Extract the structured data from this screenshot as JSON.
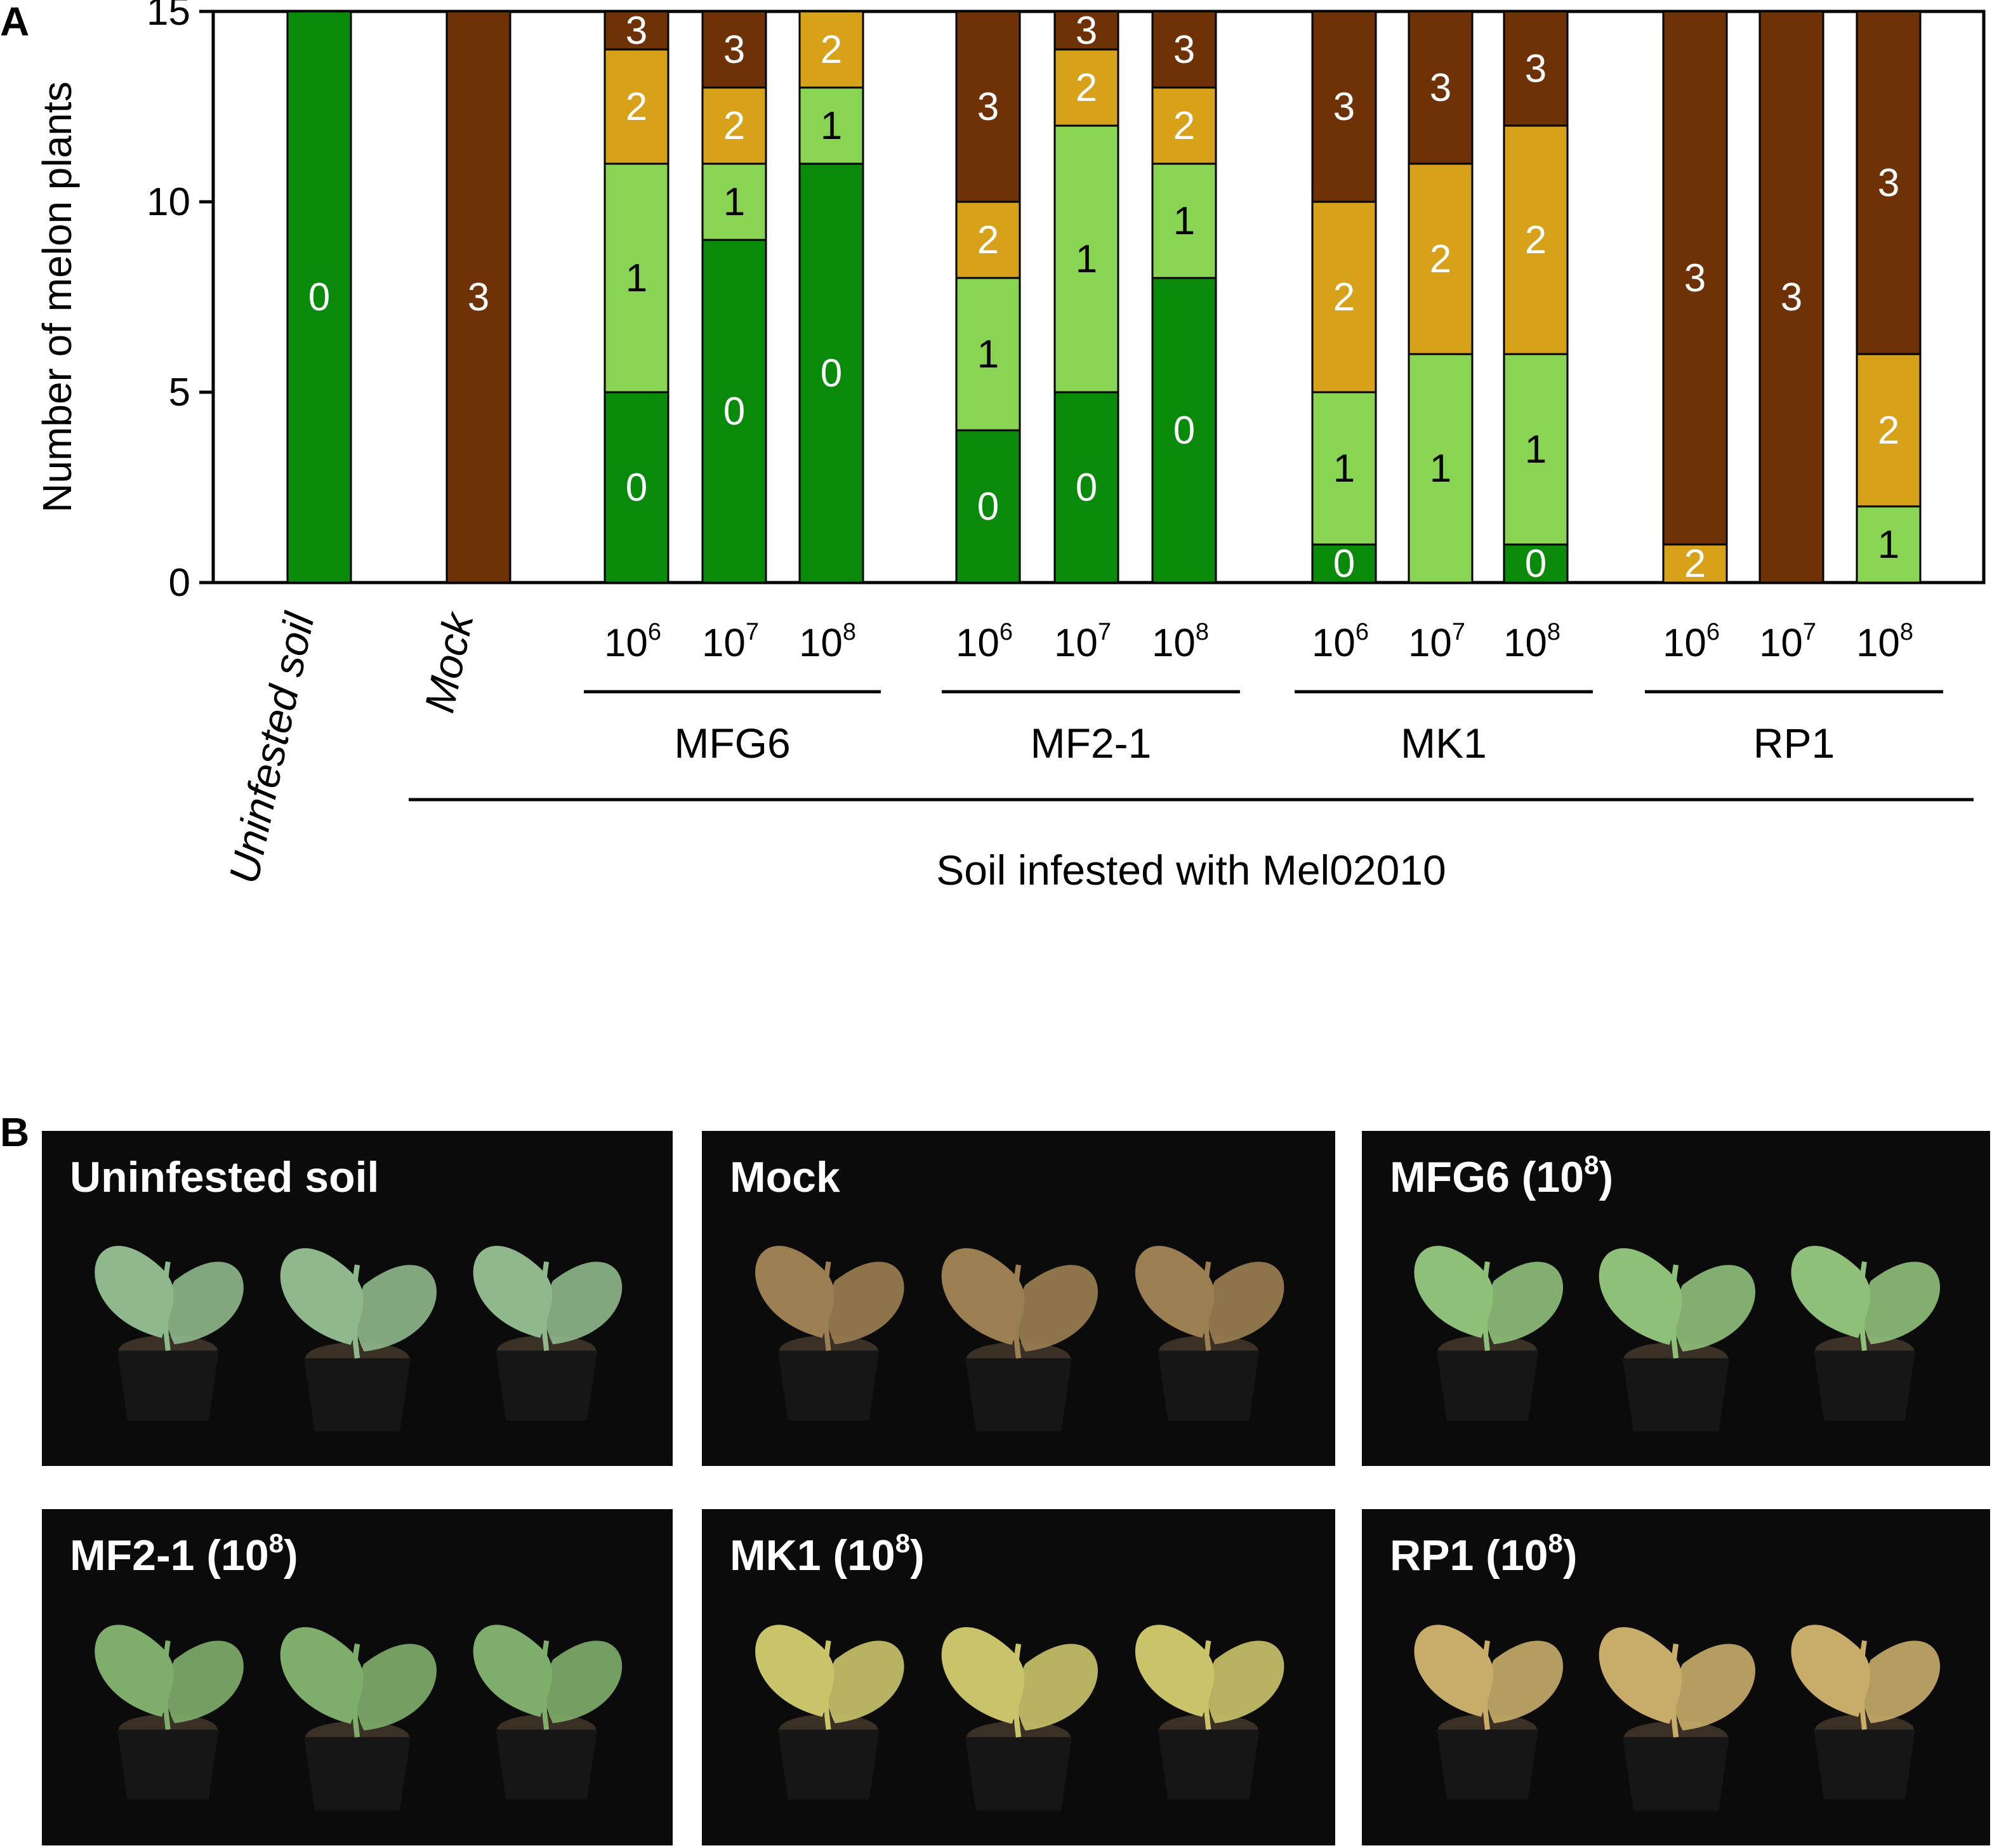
{
  "figure": {
    "panel_a_label": "A",
    "panel_b_label": "B"
  },
  "colors": {
    "score0": "#0a8a0a",
    "score1": "#8ad454",
    "score2": "#d7a11a",
    "score3": "#6e3206",
    "photo_bg": "#0b0b0b"
  },
  "chart_data": {
    "type": "bar",
    "stacked": true,
    "ylabel": "Number of melon plants",
    "ylim": [
      0,
      15
    ],
    "yticks": [
      0,
      5,
      10,
      15
    ],
    "categories": [
      "Uninfested soil",
      "Mock",
      "MFG6 10^6",
      "MFG6 10^7",
      "MFG6 10^8",
      "MF2-1 10^6",
      "MF2-1 10^7",
      "MF2-1 10^8",
      "MK1 10^6",
      "MK1 10^7",
      "MK1 10^8",
      "RP1 10^6",
      "RP1 10^7",
      "RP1 10^8"
    ],
    "series": [
      {
        "name": "0",
        "values": [
          15,
          0,
          5,
          9,
          11,
          4,
          5,
          8,
          1,
          0,
          1,
          0,
          0,
          0
        ]
      },
      {
        "name": "1",
        "values": [
          0,
          0,
          6,
          2,
          2,
          4,
          7,
          3,
          4,
          6,
          5,
          0,
          0,
          2
        ]
      },
      {
        "name": "2",
        "values": [
          0,
          0,
          3,
          2,
          2,
          2,
          2,
          2,
          5,
          5,
          6,
          1,
          0,
          4
        ]
      },
      {
        "name": "3",
        "values": [
          0,
          15,
          1,
          2,
          0,
          5,
          1,
          2,
          5,
          4,
          3,
          14,
          15,
          9
        ]
      }
    ],
    "x_category_labels": [
      "Uninfested soil",
      "Mock"
    ],
    "dose_labels": [
      {
        "base": "10",
        "exp": "6"
      },
      {
        "base": "10",
        "exp": "7"
      },
      {
        "base": "10",
        "exp": "8"
      },
      {
        "base": "10",
        "exp": "6"
      },
      {
        "base": "10",
        "exp": "7"
      },
      {
        "base": "10",
        "exp": "8"
      },
      {
        "base": "10",
        "exp": "6"
      },
      {
        "base": "10",
        "exp": "7"
      },
      {
        "base": "10",
        "exp": "8"
      },
      {
        "base": "10",
        "exp": "6"
      },
      {
        "base": "10",
        "exp": "7"
      },
      {
        "base": "10",
        "exp": "8"
      }
    ],
    "groups": [
      "MFG6",
      "MF2-1",
      "MK1",
      "RP1"
    ],
    "super_group": "Soil infested with Mel02010"
  },
  "photos": [
    {
      "title": "Uninfested soil",
      "sup": "",
      "tail": ""
    },
    {
      "title": "Mock",
      "sup": "",
      "tail": ""
    },
    {
      "title": "MFG6 (10",
      "sup": "8",
      "tail": ")"
    },
    {
      "title": "MF2-1 (10",
      "sup": "8",
      "tail": ")"
    },
    {
      "title": "MK1 (10",
      "sup": "8",
      "tail": ")"
    },
    {
      "title": "RP1 (10",
      "sup": "8",
      "tail": ")"
    }
  ]
}
